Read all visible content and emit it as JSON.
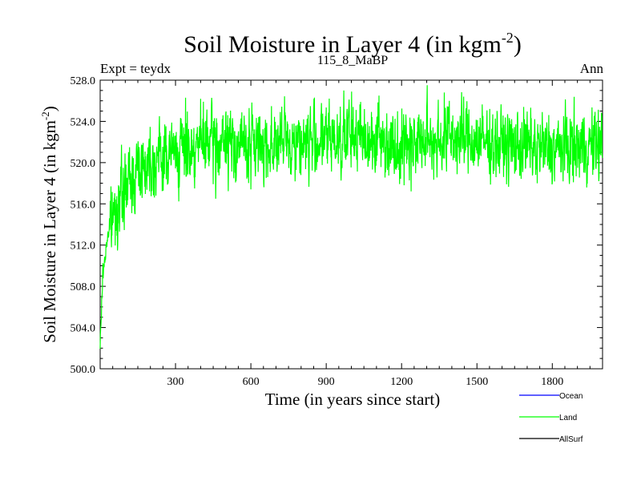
{
  "chart_data": {
    "type": "line",
    "title_main": "Soil Moisture in Layer 4 (in kgm",
    "title_sup": "-2",
    "title_close": ")",
    "subtitle_left": "Expt = teydx",
    "subtitle_center": "115_8_MaBP",
    "subtitle_right": "Ann",
    "xlabel": "Time (in years since start)",
    "ylabel_main": "Soil Moisture in Layer 4 (in kgm",
    "ylabel_sup": "-2",
    "ylabel_close": ")",
    "xlim": [
      0,
      2000
    ],
    "ylim": [
      500,
      528
    ],
    "xticks": [
      300,
      600,
      900,
      1200,
      1500,
      1800
    ],
    "xtick_labels": [
      "300",
      "600",
      "900",
      "1200",
      "1500",
      "1800"
    ],
    "yticks": [
      500,
      504,
      508,
      512,
      516,
      520,
      524,
      528
    ],
    "ytick_labels": [
      "500.0",
      "504.0",
      "508.0",
      "512.0",
      "516.0",
      "520.0",
      "524.0",
      "528.0"
    ],
    "legend": [
      {
        "name": "Ocean",
        "color": "#0000ff"
      },
      {
        "name": "Land",
        "color": "#00ff00"
      },
      {
        "name": "AllSurf",
        "color": "#000000"
      }
    ],
    "series": [
      {
        "name": "Land",
        "color": "#00ff00",
        "n_points": 2000,
        "noise_amplitude": 1.6,
        "seed": 7,
        "trend_anchors": {
          "x": [
            0,
            10,
            30,
            60,
            100,
            150,
            200,
            300,
            400,
            600,
            900,
            1000,
            1200,
            1400,
            1600,
            1800,
            2000
          ],
          "y": [
            502.0,
            509.0,
            513.0,
            515.5,
            517.5,
            519.5,
            520.3,
            521.0,
            521.8,
            521.8,
            522.2,
            522.6,
            521.8,
            522.5,
            521.8,
            521.3,
            521.8
          ]
        },
        "extremes": [
          {
            "x": 340,
            "y": 526.3
          },
          {
            "x": 460,
            "y": 516.5
          },
          {
            "x": 600,
            "y": 517.4
          },
          {
            "x": 970,
            "y": 527.0
          },
          {
            "x": 1110,
            "y": 526.5
          },
          {
            "x": 1210,
            "y": 517.8
          },
          {
            "x": 1370,
            "y": 526.8
          },
          {
            "x": 1390,
            "y": 526.0
          },
          {
            "x": 1740,
            "y": 518.0
          },
          {
            "x": 1985,
            "y": 518.2
          }
        ]
      },
      {
        "name": "Ocean",
        "color": "#0000ff",
        "n_points": 0
      },
      {
        "name": "AllSurf",
        "color": "#000000",
        "n_points": 0
      }
    ]
  }
}
